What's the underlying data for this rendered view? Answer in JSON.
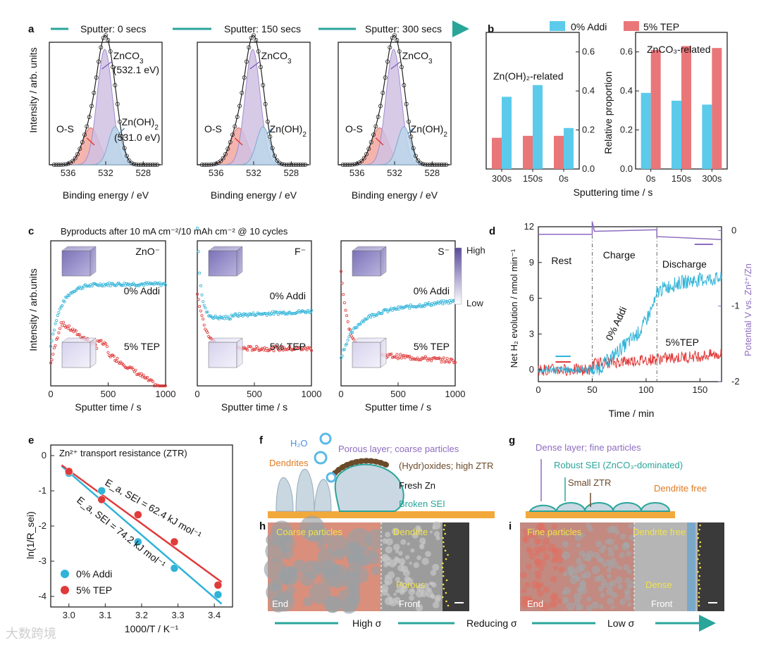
{
  "panels": {
    "a": {
      "letter": "a",
      "sputter_labels": [
        "Sputter: 0 secs",
        "Sputter: 150 secs",
        "Sputter: 300 secs"
      ],
      "xlabel": "Binding energy / eV",
      "ylabel": "Intensity / arb. units",
      "xticks": [
        "536",
        "532",
        "528"
      ],
      "peaks": {
        "zco3": "ZnCO",
        "zco3_sub": "3",
        "zco3_energy": "(532.1 eV)",
        "zoh": "Zn(OH)",
        "zoh_sub": "2",
        "zoh_energy": "(531.0 eV)",
        "os": "O-S"
      }
    },
    "b": {
      "letter": "b",
      "legend": [
        "0% Addi",
        "5% TEP"
      ],
      "left_title": "Zn(OH)₂-related",
      "right_title": "ZnCO₃-related",
      "ylabel": "Relative proportion",
      "xlabel": "Sputtering time / s",
      "yticks": [
        "0.0",
        "0.2",
        "0.4",
        "0.6"
      ],
      "chart_data": {
        "type": "bar",
        "groups": [
          {
            "name": "Zn(OH)₂-related",
            "categories": [
              "300s",
              "150s",
              "0s"
            ],
            "series": [
              {
                "name": "0% Addi",
                "values": [
                  0.37,
                  0.43,
                  0.21
                ]
              },
              {
                "name": "5% TEP",
                "values": [
                  0.16,
                  0.17,
                  0.17
                ]
              }
            ]
          },
          {
            "name": "ZnCO₃-related",
            "categories": [
              "0s",
              "150s",
              "300s"
            ],
            "series": [
              {
                "name": "0% Addi",
                "values": [
                  0.39,
                  0.35,
                  0.33
                ]
              },
              {
                "name": "5% TEP",
                "values": [
                  0.61,
                  0.63,
                  0.62
                ]
              }
            ]
          }
        ],
        "ylim": [
          0,
          0.7
        ]
      }
    },
    "c": {
      "letter": "c",
      "title": "Byproducts after 10 mA cm⁻²/10 mAh cm⁻² @ 10 cycles",
      "ions": [
        "ZnO⁻",
        "F⁻",
        "S⁻"
      ],
      "series": [
        "0% Addi",
        "5% TEP"
      ],
      "xlabel": "Sputter time / s",
      "ylabel": "Intensity / arb.units",
      "xticks": [
        "0",
        "500",
        "1000"
      ],
      "colorbar": {
        "high": "High",
        "low": "Low"
      }
    },
    "d": {
      "letter": "d",
      "ylabel_left": "Net H₂ evolution / nmol min⁻¹",
      "ylabel_right": "Potential V vs. Zn²⁺/Zn",
      "xlabel": "Time / min",
      "xticks": [
        "0",
        "50",
        "100",
        "150"
      ],
      "yticks_left": [
        "0",
        "3",
        "6",
        "9",
        "12"
      ],
      "yticks_right": [
        "0",
        "-1",
        "-2"
      ],
      "phases": [
        "Rest",
        "Charge",
        "Discharge"
      ],
      "series": [
        "0% Addi",
        "5%TEP"
      ]
    },
    "e": {
      "letter": "e",
      "title": "Zn²⁺ transport resistance (ZTR)",
      "xlabel": "1000/T / K⁻¹",
      "ylabel": "ln(1/R_sei)",
      "xticks": [
        "3.0",
        "3.1",
        "3.2",
        "3.3",
        "3.4"
      ],
      "yticks": [
        "0",
        "-1",
        "-2",
        "-3",
        "-4"
      ],
      "fit_red": "E_a, SEI = 62.4 kJ mol⁻¹",
      "fit_cyan": "E_a, SEI = 74.2 kJ mol⁻¹",
      "legend": [
        "0% Addi",
        "5% TEP"
      ],
      "chart_data": {
        "type": "scatter",
        "series": [
          {
            "name": "0% Addi",
            "x": [
              3.0,
              3.09,
              3.19,
              3.29,
              3.41
            ],
            "y": [
              -0.5,
              -1.0,
              -2.45,
              -3.2,
              -3.95
            ]
          },
          {
            "name": "5% TEP",
            "x": [
              3.0,
              3.09,
              3.19,
              3.29,
              3.41
            ],
            "y": [
              -0.45,
              -1.25,
              -1.68,
              -2.45,
              -3.68
            ]
          }
        ],
        "xlim": [
          2.95,
          3.45
        ],
        "ylim": [
          -4.3,
          0.3
        ]
      }
    },
    "f": {
      "letter": "f",
      "labels": [
        "H₂O",
        "Porous layer; coarse particles",
        "Dendrites",
        "(Hydr)oxides; high ZTR",
        "Fresh Zn",
        "Broken SEI"
      ]
    },
    "g": {
      "letter": "g",
      "labels": [
        "Dense layer; fine particles",
        "Robust SEI (ZnCO₃-dominated)",
        "Small ZTR",
        "Dendrite free"
      ]
    },
    "h": {
      "letter": "h",
      "labels": [
        "Coarse particles",
        "Dendrite",
        "Porous",
        "End",
        "Front"
      ]
    },
    "i": {
      "letter": "i",
      "labels": [
        "Fine particles",
        "Dendrite free",
        "Dense",
        "End",
        "Front"
      ]
    },
    "bottom": {
      "labels": [
        "High σ",
        "Reducing σ",
        "Low σ"
      ]
    },
    "watermark": "大数跨境"
  },
  "colors": {
    "cyan": "#2fb3d8",
    "red": "#e03a3a",
    "purple": "#8e6cc0",
    "bar_cyan": "#5ccbeb",
    "bar_red": "#e9777a"
  }
}
